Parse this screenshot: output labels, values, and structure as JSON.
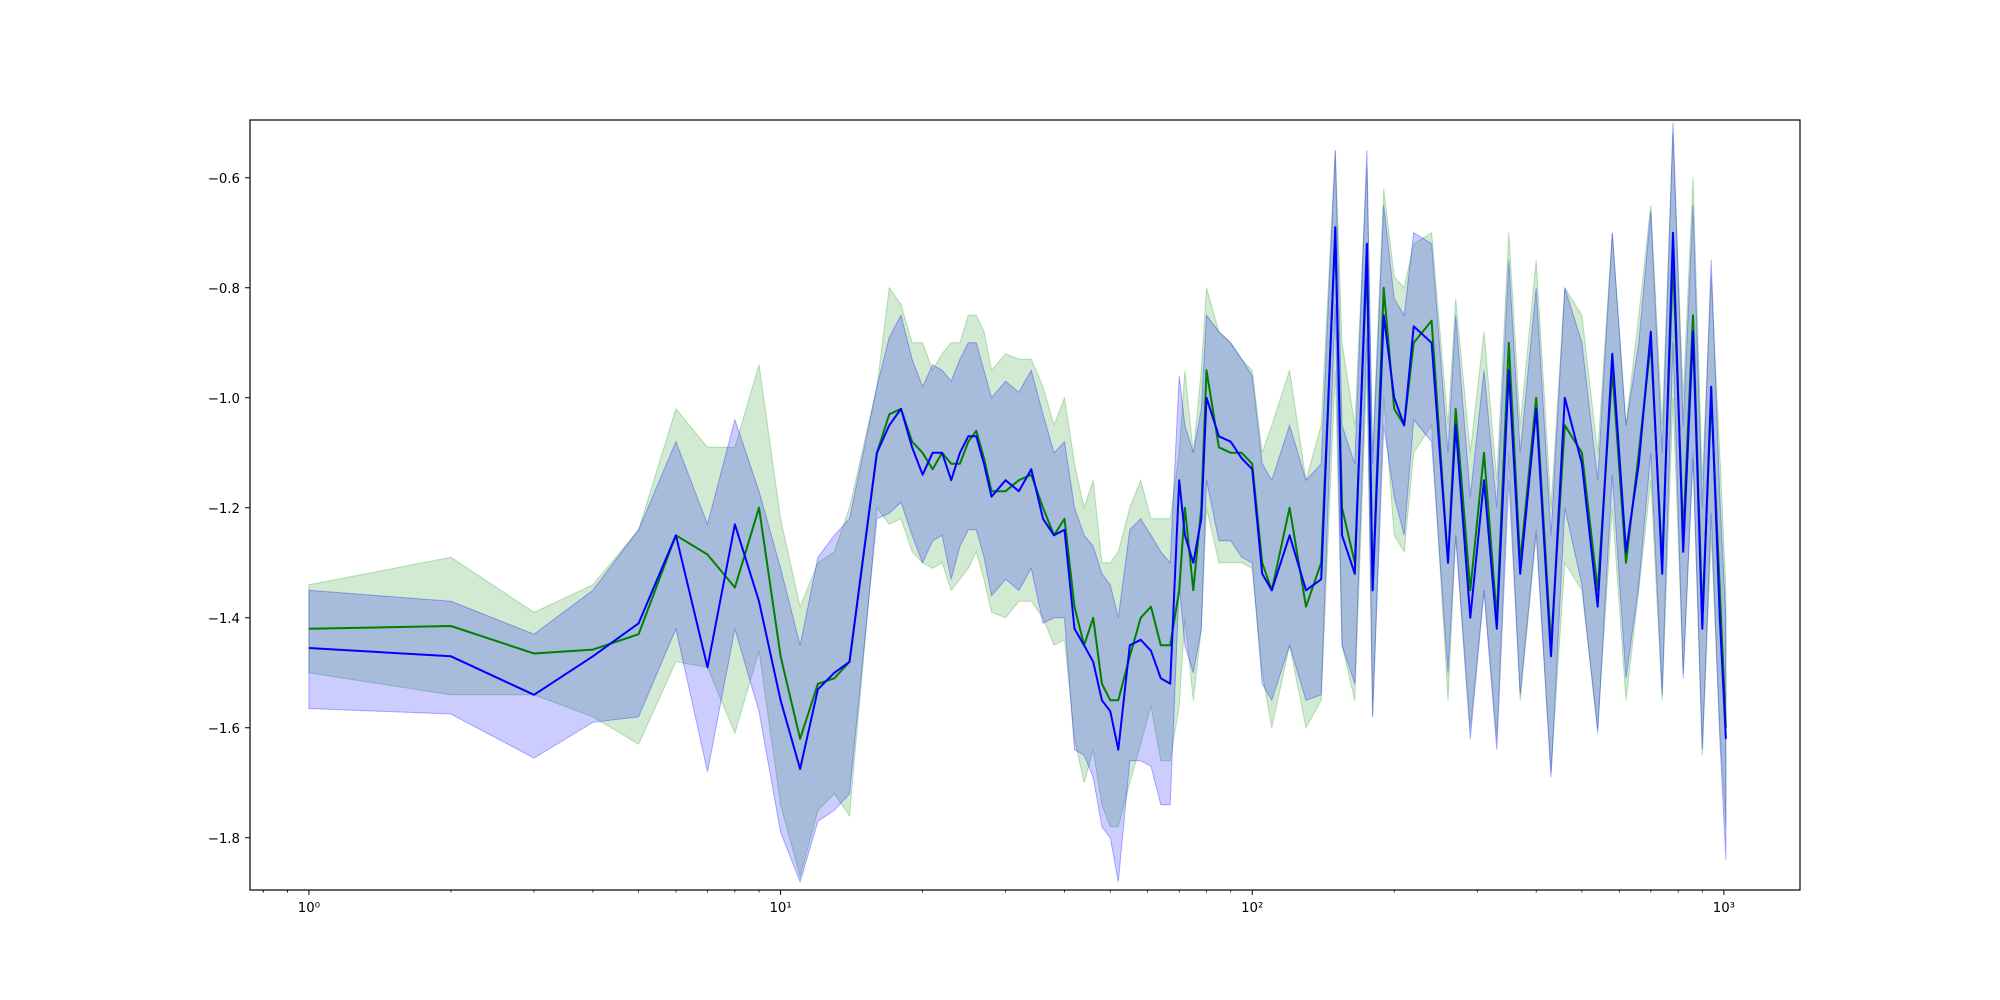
{
  "chart_data": {
    "type": "line",
    "title": "",
    "xlabel": "",
    "ylabel": "",
    "x_scale": "log",
    "xlim": [
      0.75,
      1450
    ],
    "ylim": [
      -1.895,
      -0.495
    ],
    "grid": false,
    "legend": "none",
    "x_tick_labels": [
      "10⁰",
      "10¹",
      "10²",
      "10³"
    ],
    "x_ticks": [
      1,
      10,
      100,
      1000
    ],
    "y_ticks": [
      -1.8,
      -1.6,
      -1.4,
      -1.2,
      -1.0,
      -0.8,
      -0.6
    ],
    "y_tick_labels": [
      "−1.8",
      "−1.6",
      "−1.4",
      "−1.2",
      "−1.0",
      "−0.8",
      "−0.6"
    ],
    "series": [
      {
        "color": "#008000",
        "band_color": "#2ca02c",
        "x": [
          1,
          2,
          3,
          4,
          5,
          6,
          7,
          8,
          9,
          10,
          11,
          12,
          13,
          14,
          16,
          17,
          18,
          19,
          20,
          21,
          22,
          23,
          24,
          25,
          26,
          27,
          28,
          30,
          32,
          34,
          36,
          38,
          40,
          42,
          44,
          46,
          48,
          50,
          52,
          55,
          58,
          61,
          64,
          67,
          70,
          72,
          75,
          78,
          80,
          85,
          90,
          95,
          100,
          105,
          110,
          120,
          130,
          140,
          150,
          155,
          165,
          175,
          180,
          190,
          200,
          210,
          220,
          240,
          260,
          270,
          290,
          310,
          330,
          350,
          370,
          400,
          430,
          460,
          500,
          540,
          580,
          620,
          660,
          700,
          740,
          780,
          820,
          860,
          900,
          940,
          980,
          1010
        ],
        "y": [
          -1.42,
          -1.415,
          -1.465,
          -1.458,
          -1.43,
          -1.25,
          -1.285,
          -1.345,
          -1.2,
          -1.47,
          -1.62,
          -1.52,
          -1.51,
          -1.48,
          -1.1,
          -1.03,
          -1.02,
          -1.08,
          -1.1,
          -1.13,
          -1.1,
          -1.12,
          -1.12,
          -1.08,
          -1.06,
          -1.11,
          -1.17,
          -1.17,
          -1.15,
          -1.14,
          -1.2,
          -1.25,
          -1.22,
          -1.38,
          -1.45,
          -1.4,
          -1.52,
          -1.55,
          -1.55,
          -1.47,
          -1.4,
          -1.38,
          -1.45,
          -1.45,
          -1.35,
          -1.2,
          -1.35,
          -1.2,
          -0.95,
          -1.09,
          -1.1,
          -1.1,
          -1.12,
          -1.3,
          -1.35,
          -1.2,
          -1.38,
          -1.3,
          -0.7,
          -1.2,
          -1.3,
          -0.75,
          -1.35,
          -0.8,
          -1.02,
          -1.05,
          -0.9,
          -0.86,
          -1.3,
          -1.02,
          -1.35,
          -1.1,
          -1.4,
          -0.9,
          -1.3,
          -1.0,
          -1.45,
          -1.05,
          -1.1,
          -1.35,
          -0.95,
          -1.3,
          -1.1,
          -0.9,
          -1.3,
          -0.75,
          -1.25,
          -0.85,
          -1.4,
          -1.0,
          -1.35,
          -1.6
        ],
        "upper": [
          -1.34,
          -1.29,
          -1.39,
          -1.34,
          -1.24,
          -1.02,
          -1.09,
          -1.09,
          -0.94,
          -1.22,
          -1.38,
          -1.3,
          -1.28,
          -1.2,
          -0.98,
          -0.8,
          -0.83,
          -0.9,
          -0.9,
          -0.95,
          -0.92,
          -0.9,
          -0.9,
          -0.85,
          -0.85,
          -0.88,
          -0.95,
          -0.92,
          -0.93,
          -0.93,
          -0.98,
          -1.05,
          -1.0,
          -1.12,
          -1.2,
          -1.15,
          -1.3,
          -1.3,
          -1.28,
          -1.2,
          -1.15,
          -1.22,
          -1.22,
          -1.22,
          -1.1,
          -0.95,
          -1.1,
          -0.95,
          -0.8,
          -0.88,
          -0.9,
          -0.93,
          -0.95,
          -1.1,
          -1.05,
          -0.95,
          -1.15,
          -1.05,
          -0.55,
          -0.9,
          -1.05,
          -0.58,
          -1.1,
          -0.62,
          -0.78,
          -0.8,
          -0.72,
          -0.7,
          -1.05,
          -0.82,
          -1.1,
          -0.88,
          -1.15,
          -0.7,
          -1.05,
          -0.75,
          -1.2,
          -0.8,
          -0.85,
          -1.1,
          -0.7,
          -1.05,
          -0.85,
          -0.65,
          -1.05,
          -0.52,
          -1.0,
          -0.6,
          -1.15,
          -0.78,
          -1.1,
          -1.35
        ],
        "lower": [
          -1.5,
          -1.54,
          -1.54,
          -1.58,
          -1.63,
          -1.48,
          -1.49,
          -1.61,
          -1.46,
          -1.74,
          -1.87,
          -1.75,
          -1.72,
          -1.76,
          -1.2,
          -1.23,
          -1.22,
          -1.28,
          -1.3,
          -1.31,
          -1.3,
          -1.35,
          -1.33,
          -1.31,
          -1.28,
          -1.33,
          -1.39,
          -1.4,
          -1.37,
          -1.37,
          -1.4,
          -1.45,
          -1.44,
          -1.62,
          -1.7,
          -1.64,
          -1.74,
          -1.78,
          -1.78,
          -1.7,
          -1.63,
          -1.56,
          -1.66,
          -1.66,
          -1.56,
          -1.4,
          -1.55,
          -1.42,
          -1.2,
          -1.3,
          -1.3,
          -1.3,
          -1.31,
          -1.5,
          -1.6,
          -1.45,
          -1.6,
          -1.55,
          -0.95,
          -1.45,
          -1.55,
          -0.95,
          -1.58,
          -1.0,
          -1.25,
          -1.28,
          -1.1,
          -1.05,
          -1.55,
          -1.25,
          -1.6,
          -1.35,
          -1.62,
          -1.1,
          -1.55,
          -1.25,
          -1.68,
          -1.3,
          -1.35,
          -1.6,
          -1.2,
          -1.55,
          -1.35,
          -1.15,
          -1.55,
          -1.0,
          -1.5,
          -1.1,
          -1.65,
          -1.25,
          -1.6,
          -1.78
        ]
      },
      {
        "color": "#0000ff",
        "band_color": "#0000ff",
        "x": [
          1,
          2,
          3,
          4,
          5,
          6,
          7,
          8,
          9,
          10,
          11,
          12,
          13,
          14,
          16,
          17,
          18,
          19,
          20,
          21,
          22,
          23,
          24,
          25,
          26,
          27,
          28,
          30,
          32,
          34,
          36,
          38,
          40,
          42,
          44,
          46,
          48,
          50,
          52,
          55,
          58,
          61,
          64,
          67,
          70,
          72,
          75,
          78,
          80,
          85,
          90,
          95,
          100,
          105,
          110,
          120,
          130,
          140,
          150,
          155,
          165,
          175,
          180,
          190,
          200,
          210,
          220,
          240,
          260,
          270,
          290,
          310,
          330,
          350,
          370,
          400,
          430,
          460,
          500,
          540,
          580,
          620,
          660,
          700,
          740,
          780,
          820,
          860,
          900,
          940,
          980,
          1010
        ],
        "y": [
          -1.455,
          -1.47,
          -1.54,
          -1.47,
          -1.41,
          -1.25,
          -1.49,
          -1.23,
          -1.37,
          -1.55,
          -1.675,
          -1.53,
          -1.5,
          -1.48,
          -1.1,
          -1.05,
          -1.02,
          -1.09,
          -1.14,
          -1.1,
          -1.1,
          -1.15,
          -1.1,
          -1.07,
          -1.07,
          -1.12,
          -1.18,
          -1.15,
          -1.17,
          -1.13,
          -1.22,
          -1.25,
          -1.24,
          -1.42,
          -1.45,
          -1.48,
          -1.55,
          -1.57,
          -1.64,
          -1.45,
          -1.44,
          -1.46,
          -1.51,
          -1.52,
          -1.15,
          -1.25,
          -1.3,
          -1.22,
          -1.0,
          -1.07,
          -1.08,
          -1.11,
          -1.13,
          -1.32,
          -1.35,
          -1.25,
          -1.35,
          -1.33,
          -0.69,
          -1.25,
          -1.32,
          -0.72,
          -1.35,
          -0.85,
          -1.0,
          -1.05,
          -0.87,
          -0.9,
          -1.3,
          -1.05,
          -1.4,
          -1.15,
          -1.42,
          -0.95,
          -1.32,
          -1.02,
          -1.47,
          -1.0,
          -1.12,
          -1.38,
          -0.92,
          -1.28,
          -1.12,
          -0.88,
          -1.32,
          -0.7,
          -1.28,
          -0.88,
          -1.42,
          -0.98,
          -1.4,
          -1.62
        ],
        "upper": [
          -1.35,
          -1.37,
          -1.43,
          -1.35,
          -1.24,
          -1.08,
          -1.23,
          -1.04,
          -1.17,
          -1.31,
          -1.45,
          -1.29,
          -1.25,
          -1.22,
          -0.98,
          -0.89,
          -0.85,
          -0.93,
          -0.98,
          -0.94,
          -0.95,
          -0.97,
          -0.93,
          -0.9,
          -0.9,
          -0.95,
          -1.0,
          -0.97,
          -0.99,
          -0.95,
          -1.03,
          -1.1,
          -1.08,
          -1.2,
          -1.25,
          -1.27,
          -1.32,
          -1.34,
          -1.4,
          -1.24,
          -1.22,
          -1.25,
          -1.28,
          -1.3,
          -0.96,
          -1.05,
          -1.1,
          -1.02,
          -0.85,
          -0.88,
          -0.9,
          -0.93,
          -0.96,
          -1.12,
          -1.15,
          -1.05,
          -1.15,
          -1.12,
          -0.55,
          -1.05,
          -1.12,
          -0.55,
          -1.12,
          -0.65,
          -0.82,
          -0.85,
          -0.7,
          -0.72,
          -1.1,
          -0.85,
          -1.18,
          -0.95,
          -1.2,
          -0.75,
          -1.1,
          -0.8,
          -1.25,
          -0.8,
          -0.9,
          -1.15,
          -0.7,
          -1.05,
          -0.9,
          -0.66,
          -1.1,
          -0.5,
          -1.05,
          -0.65,
          -1.2,
          -0.75,
          -1.18,
          -1.4
        ],
        "lower": [
          -1.565,
          -1.575,
          -1.655,
          -1.59,
          -1.58,
          -1.42,
          -1.68,
          -1.42,
          -1.57,
          -1.79,
          -1.88,
          -1.77,
          -1.75,
          -1.72,
          -1.22,
          -1.21,
          -1.19,
          -1.25,
          -1.3,
          -1.26,
          -1.25,
          -1.33,
          -1.27,
          -1.24,
          -1.24,
          -1.29,
          -1.36,
          -1.33,
          -1.35,
          -1.31,
          -1.41,
          -1.4,
          -1.4,
          -1.64,
          -1.65,
          -1.69,
          -1.78,
          -1.8,
          -1.88,
          -1.66,
          -1.66,
          -1.67,
          -1.74,
          -1.74,
          -1.34,
          -1.45,
          -1.5,
          -1.42,
          -1.15,
          -1.26,
          -1.26,
          -1.29,
          -1.3,
          -1.52,
          -1.55,
          -1.45,
          -1.55,
          -1.54,
          -0.83,
          -1.45,
          -1.52,
          -0.89,
          -1.58,
          -1.05,
          -1.18,
          -1.25,
          -1.04,
          -1.08,
          -1.5,
          -1.25,
          -1.62,
          -1.35,
          -1.64,
          -1.15,
          -1.54,
          -1.24,
          -1.69,
          -1.2,
          -1.34,
          -1.61,
          -1.14,
          -1.51,
          -1.34,
          -1.1,
          -1.54,
          -0.9,
          -1.51,
          -1.11,
          -1.64,
          -1.21,
          -1.62,
          -1.84
        ]
      }
    ]
  }
}
